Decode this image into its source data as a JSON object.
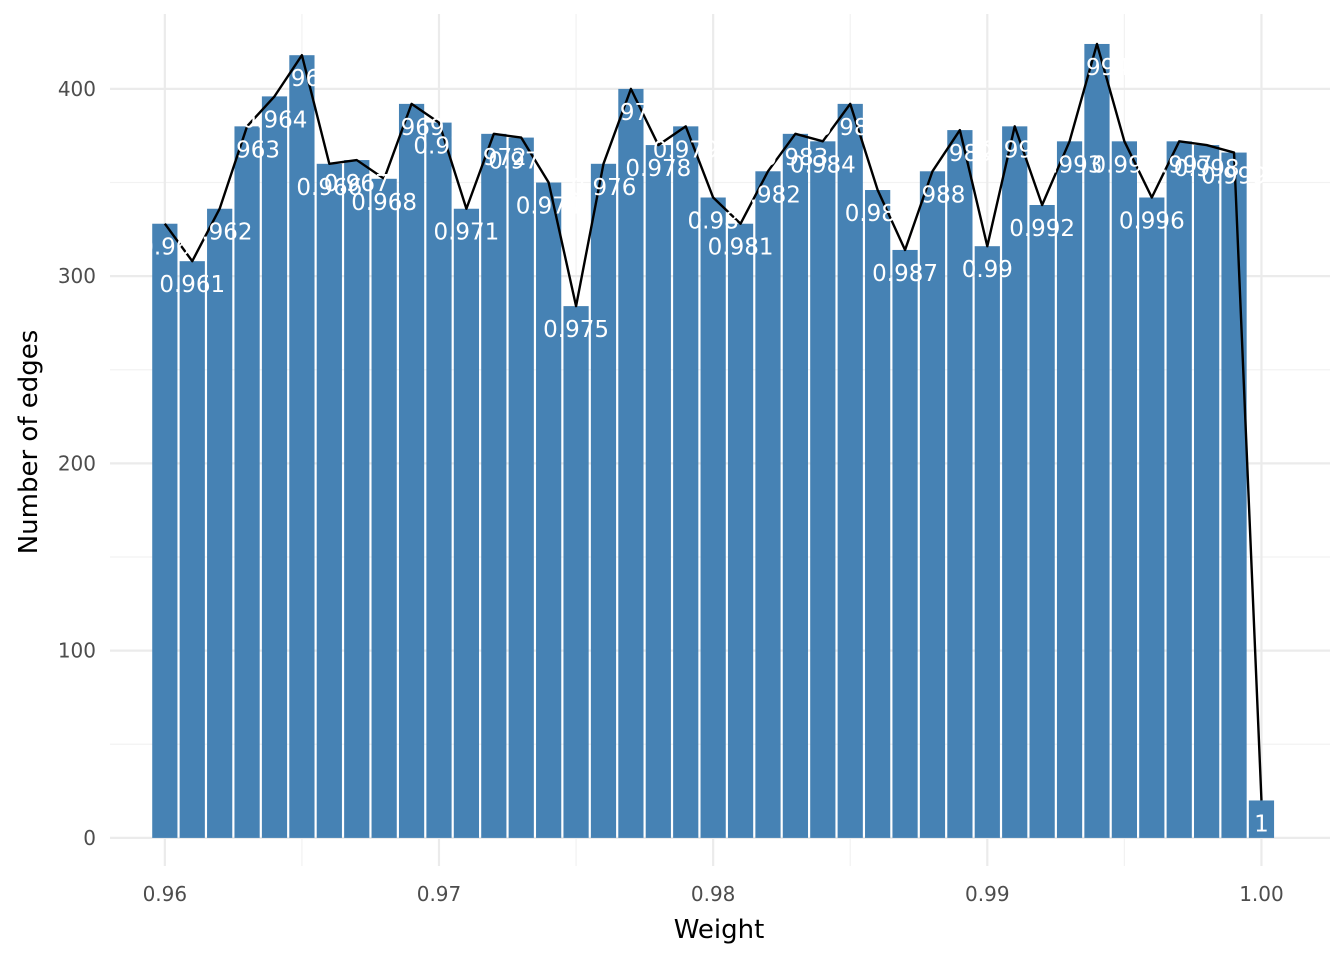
{
  "chart_data": {
    "type": "bar",
    "title": "",
    "xlabel": "Weight",
    "ylabel": "Number of edges",
    "xlim": [
      0.958,
      1.0025
    ],
    "ylim": [
      -15,
      440
    ],
    "x_ticks": [
      0.96,
      0.97,
      0.98,
      0.99,
      1.0
    ],
    "x_tick_labels": [
      "0.96",
      "0.97",
      "0.98",
      "0.99",
      "1.00"
    ],
    "y_ticks": [
      0,
      100,
      200,
      300,
      400
    ],
    "y_tick_labels": [
      "0",
      "100",
      "200",
      "300",
      "400"
    ],
    "grid": true,
    "legend": "none",
    "bar_color": "#4682b4",
    "line_color": "#000000",
    "overlay": "line",
    "x": [
      0.96,
      0.961,
      0.962,
      0.963,
      0.964,
      0.965,
      0.966,
      0.967,
      0.968,
      0.969,
      0.97,
      0.971,
      0.972,
      0.973,
      0.974,
      0.975,
      0.976,
      0.977,
      0.978,
      0.979,
      0.98,
      0.981,
      0.982,
      0.983,
      0.984,
      0.985,
      0.986,
      0.987,
      0.988,
      0.989,
      0.99,
      0.991,
      0.992,
      0.993,
      0.994,
      0.995,
      0.996,
      0.997,
      0.998,
      0.999,
      1.0
    ],
    "values": [
      328,
      308,
      336,
      380,
      396,
      418,
      360,
      362,
      352,
      392,
      382,
      336,
      376,
      374,
      350,
      284,
      360,
      400,
      370,
      380,
      342,
      328,
      356,
      376,
      372,
      392,
      346,
      314,
      356,
      378,
      316,
      380,
      338,
      372,
      424,
      372,
      342,
      372,
      370,
      366,
      20
    ],
    "bar_labels": [
      "0.96",
      "0.961",
      "0.962",
      "0.963",
      "0.964",
      "0.965",
      "0.966",
      "0.967",
      "0.968",
      "0.969",
      "0.97",
      "0.971",
      "0.972",
      "0.973",
      "0.974",
      "0.975",
      "0.976",
      "0.977",
      "0.978",
      "0.979",
      "0.98",
      "0.981",
      "0.982",
      "0.983",
      "0.984",
      "0.985",
      "0.986",
      "0.987",
      "0.988",
      "0.989",
      "0.99",
      "0.991",
      "0.992",
      "0.993",
      "0.994",
      "0.995",
      "0.996",
      "0.997",
      "0.998",
      "0.999",
      "1"
    ]
  }
}
